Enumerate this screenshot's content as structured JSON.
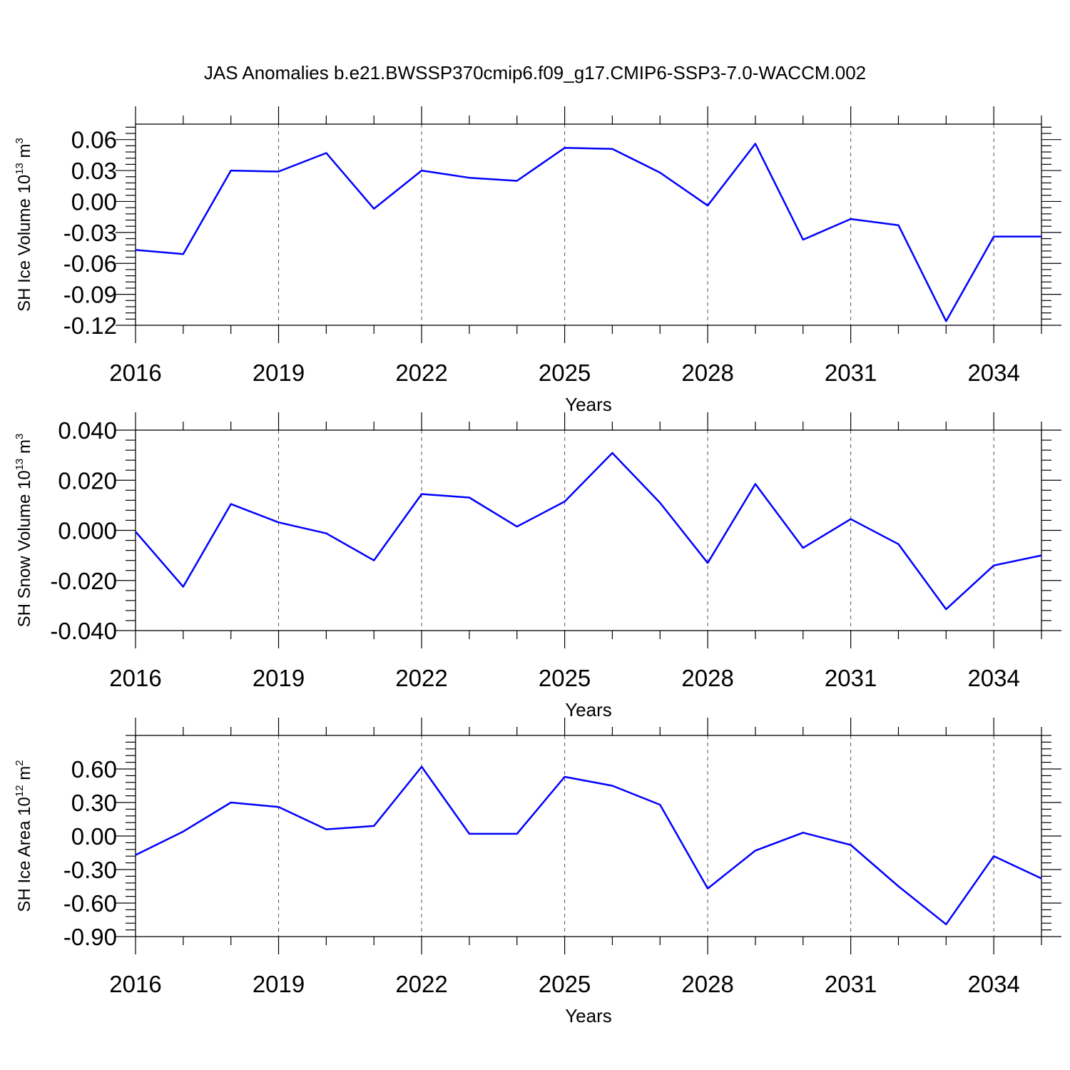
{
  "figure": {
    "title": "JAS Anomalies b.e21.BWSSP370cmip6.f09_g17.CMIP6-SSP3-7.0-WACCM.002"
  },
  "colors": {
    "line": "#0000ff",
    "axis": "#000000",
    "grid": "#555555",
    "background": "#ffffff"
  },
  "chart_data": [
    {
      "type": "line",
      "title": "JAS Anomalies b.e21.BWSSP370cmip6.f09_g17.CMIP6-SSP3-7.0-WACCM.002",
      "xlabel": "Years",
      "ylabel": {
        "base": "SH Ice Volume 10",
        "exp": "13",
        "unit": " m",
        "unit_exp": "3"
      },
      "xlim": [
        2016,
        2035
      ],
      "ylim": [
        -0.12,
        0.075
      ],
      "xticks": [
        2016,
        2019,
        2022,
        2025,
        2028,
        2031,
        2034
      ],
      "xtick_labels": [
        "2016",
        "2019",
        "2022",
        "2025",
        "2028",
        "2031",
        "2034"
      ],
      "yticks": [
        -0.12,
        -0.09,
        -0.06,
        -0.03,
        0.0,
        0.03,
        0.06
      ],
      "ytick_labels": [
        "-0.12",
        "-0.09",
        "-0.06",
        "-0.03",
        "0.00",
        "0.03",
        "0.06"
      ],
      "grid": "vertical dashed at major x ticks",
      "x": [
        2016,
        2017,
        2018,
        2019,
        2020,
        2021,
        2022,
        2023,
        2024,
        2025,
        2026,
        2027,
        2028,
        2029,
        2030,
        2031,
        2032,
        2033,
        2034,
        2035
      ],
      "series": [
        {
          "values": [
            -0.047,
            -0.051,
            0.03,
            0.029,
            0.047,
            -0.007,
            0.03,
            0.023,
            0.02,
            0.052,
            0.051,
            0.028,
            -0.004,
            0.056,
            -0.037,
            -0.017,
            -0.023,
            -0.116,
            -0.034,
            -0.034
          ]
        }
      ]
    },
    {
      "type": "line",
      "title": "",
      "xlabel": "Years",
      "ylabel": {
        "base": "SH Snow Volume 10",
        "exp": "13",
        "unit": " m",
        "unit_exp": "3"
      },
      "xlim": [
        2016,
        2035
      ],
      "ylim": [
        -0.04,
        0.04
      ],
      "xticks": [
        2016,
        2019,
        2022,
        2025,
        2028,
        2031,
        2034
      ],
      "xtick_labels": [
        "2016",
        "2019",
        "2022",
        "2025",
        "2028",
        "2031",
        "2034"
      ],
      "yticks": [
        -0.04,
        -0.02,
        0.0,
        0.02,
        0.04
      ],
      "ytick_labels": [
        "-0.040",
        "-0.020",
        "0.000",
        "0.020",
        "0.040"
      ],
      "grid": "vertical dashed at major x ticks",
      "x": [
        2016,
        2017,
        2018,
        2019,
        2020,
        2021,
        2022,
        2023,
        2024,
        2025,
        2026,
        2027,
        2028,
        2029,
        2030,
        2031,
        2032,
        2033,
        2034,
        2035
      ],
      "series": [
        {
          "values": [
            -0.0005,
            -0.0225,
            0.0105,
            0.0032,
            -0.0012,
            -0.012,
            0.0145,
            0.0131,
            0.0015,
            0.0115,
            0.0309,
            0.011,
            -0.013,
            0.0185,
            -0.007,
            0.0045,
            -0.0055,
            -0.0315,
            -0.014,
            -0.01
          ]
        }
      ]
    },
    {
      "type": "line",
      "title": "",
      "xlabel": "Years",
      "ylabel": {
        "base": "SH Ice Area 10",
        "exp": "12",
        "unit": " m",
        "unit_exp": "2"
      },
      "xlim": [
        2016,
        2035
      ],
      "ylim": [
        -0.9,
        0.9
      ],
      "xticks": [
        2016,
        2019,
        2022,
        2025,
        2028,
        2031,
        2034
      ],
      "xtick_labels": [
        "2016",
        "2019",
        "2022",
        "2025",
        "2028",
        "2031",
        "2034"
      ],
      "yticks": [
        -0.9,
        -0.6,
        -0.3,
        0.0,
        0.3,
        0.6
      ],
      "ytick_labels": [
        "-0.90",
        "-0.60",
        "-0.30",
        "0.00",
        "0.30",
        "0.60"
      ],
      "grid": "vertical dashed at major x ticks",
      "x": [
        2016,
        2017,
        2018,
        2019,
        2020,
        2021,
        2022,
        2023,
        2024,
        2025,
        2026,
        2027,
        2028,
        2029,
        2030,
        2031,
        2032,
        2033,
        2034,
        2035
      ],
      "series": [
        {
          "values": [
            -0.17,
            0.04,
            0.3,
            0.26,
            0.06,
            0.09,
            0.62,
            0.02,
            0.02,
            0.53,
            0.45,
            0.28,
            -0.47,
            -0.13,
            0.03,
            -0.08,
            -0.45,
            -0.79,
            -0.18,
            -0.38
          ]
        }
      ]
    }
  ]
}
